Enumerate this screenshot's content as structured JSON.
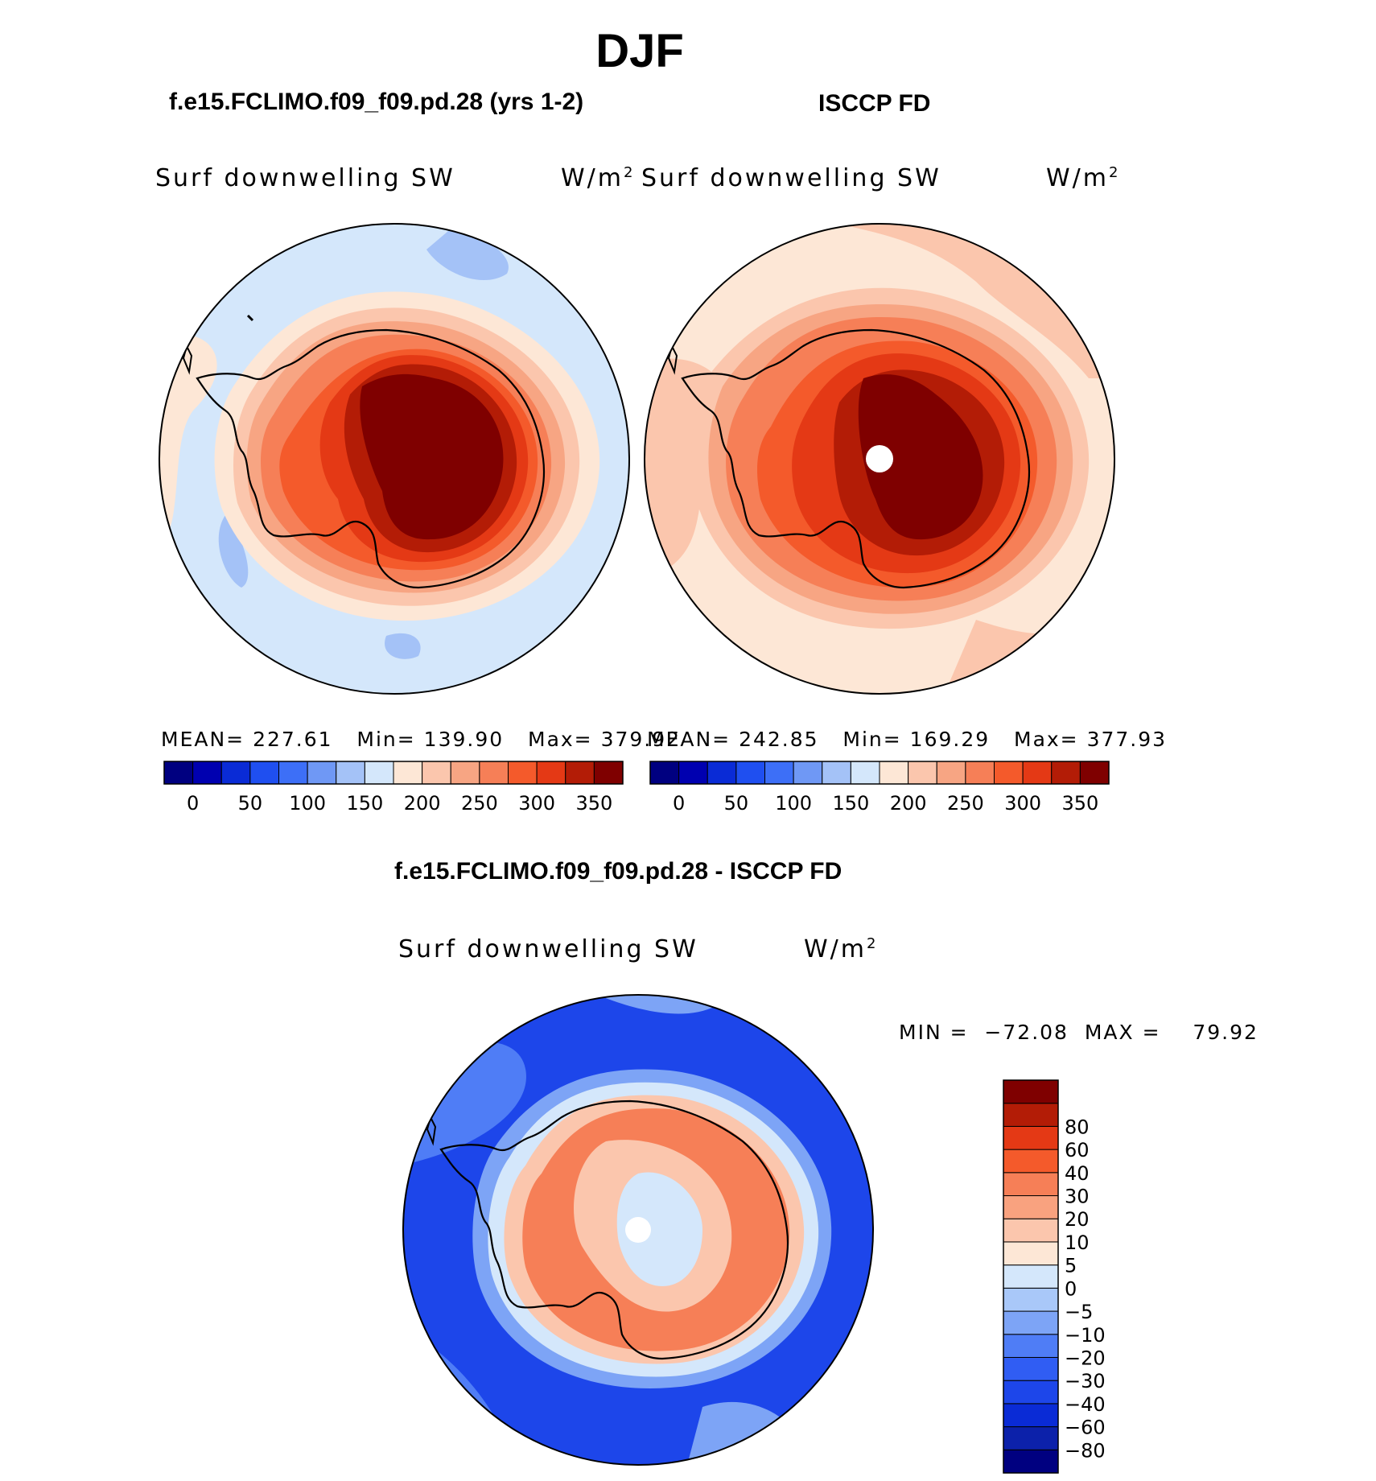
{
  "figure": {
    "title": "DJF",
    "diff_title": "f.e15.FCLIMO.f09_f09.pd.28 - ISCCP FD"
  },
  "panels": [
    {
      "title": "f.e15.FCLIMO.f09_f09.pd.28 (yrs 1-2)",
      "variable": "Surf downwelling SW",
      "units": "W/m",
      "units_sup": "2",
      "stats": {
        "mean_label": "MEAN=",
        "mean": "227.61",
        "min_label": "Min=",
        "min": "139.90",
        "max_label": "Max=",
        "max": "379.92"
      }
    },
    {
      "title": "ISCCP FD",
      "variable": "Surf downwelling SW",
      "units": "W/m",
      "units_sup": "2",
      "stats": {
        "mean_label": "MEAN=",
        "mean": "242.85",
        "min_label": "Min=",
        "min": "169.29",
        "max_label": "Max=",
        "max": "377.93"
      }
    },
    {
      "title": "f.e15.FCLIMO.f09_f09.pd.28 - ISCCP FD",
      "variable": "Surf downwelling SW",
      "units": "W/m",
      "units_sup": "2",
      "minmax": "MIN =  −72.08  MAX =    79.92"
    }
  ],
  "colorbar_abs": {
    "colors": [
      "#000080",
      "#0000b0",
      "#0a2bd6",
      "#1f4ff0",
      "#3d6ff7",
      "#6f98f5",
      "#a4c2f7",
      "#d4e7fb",
      "#fde7d6",
      "#fbc6ad",
      "#f7a583",
      "#f67f57",
      "#f45a2b",
      "#e43915",
      "#b31c06",
      "#7f0000"
    ],
    "tick_labels": [
      "0",
      "50",
      "100",
      "150",
      "200",
      "250",
      "300",
      "350"
    ]
  },
  "colorbar_diff": {
    "colors": [
      "#000080",
      "#0c21aa",
      "#0a2bd6",
      "#1d46ea",
      "#305df3",
      "#4f7df6",
      "#7da4f6",
      "#a9c8f9",
      "#d4e7fb",
      "#fde7d6",
      "#fbc6ad",
      "#f9a27f",
      "#f67f57",
      "#f45a2b",
      "#e43915",
      "#b31c06",
      "#7f0000"
    ],
    "tick_labels": [
      "−80",
      "−60",
      "−40",
      "−30",
      "−20",
      "−10",
      "−5",
      "0",
      "5",
      "10",
      "20",
      "30",
      "40",
      "60",
      "80"
    ]
  },
  "map_colors": {
    "ocean_light": "#d4e7fb",
    "ocean_mid": "#a4c2f7",
    "coast_pale": "#fde7d6",
    "ring1": "#fbc6ad",
    "ring2": "#f7a583",
    "ring3": "#f67f57",
    "ring4": "#f45a2b",
    "ring5": "#e43915",
    "ring6": "#b31c06",
    "core": "#7f0000",
    "diff_ocean": "#1d46ea",
    "diff_ocean_light": "#4f7df6",
    "diff_ocean_pale": "#7da4f6",
    "diff_land": "#f67f57",
    "diff_land_pale": "#fbc6ad",
    "diff_center": "#d4e7fb"
  }
}
